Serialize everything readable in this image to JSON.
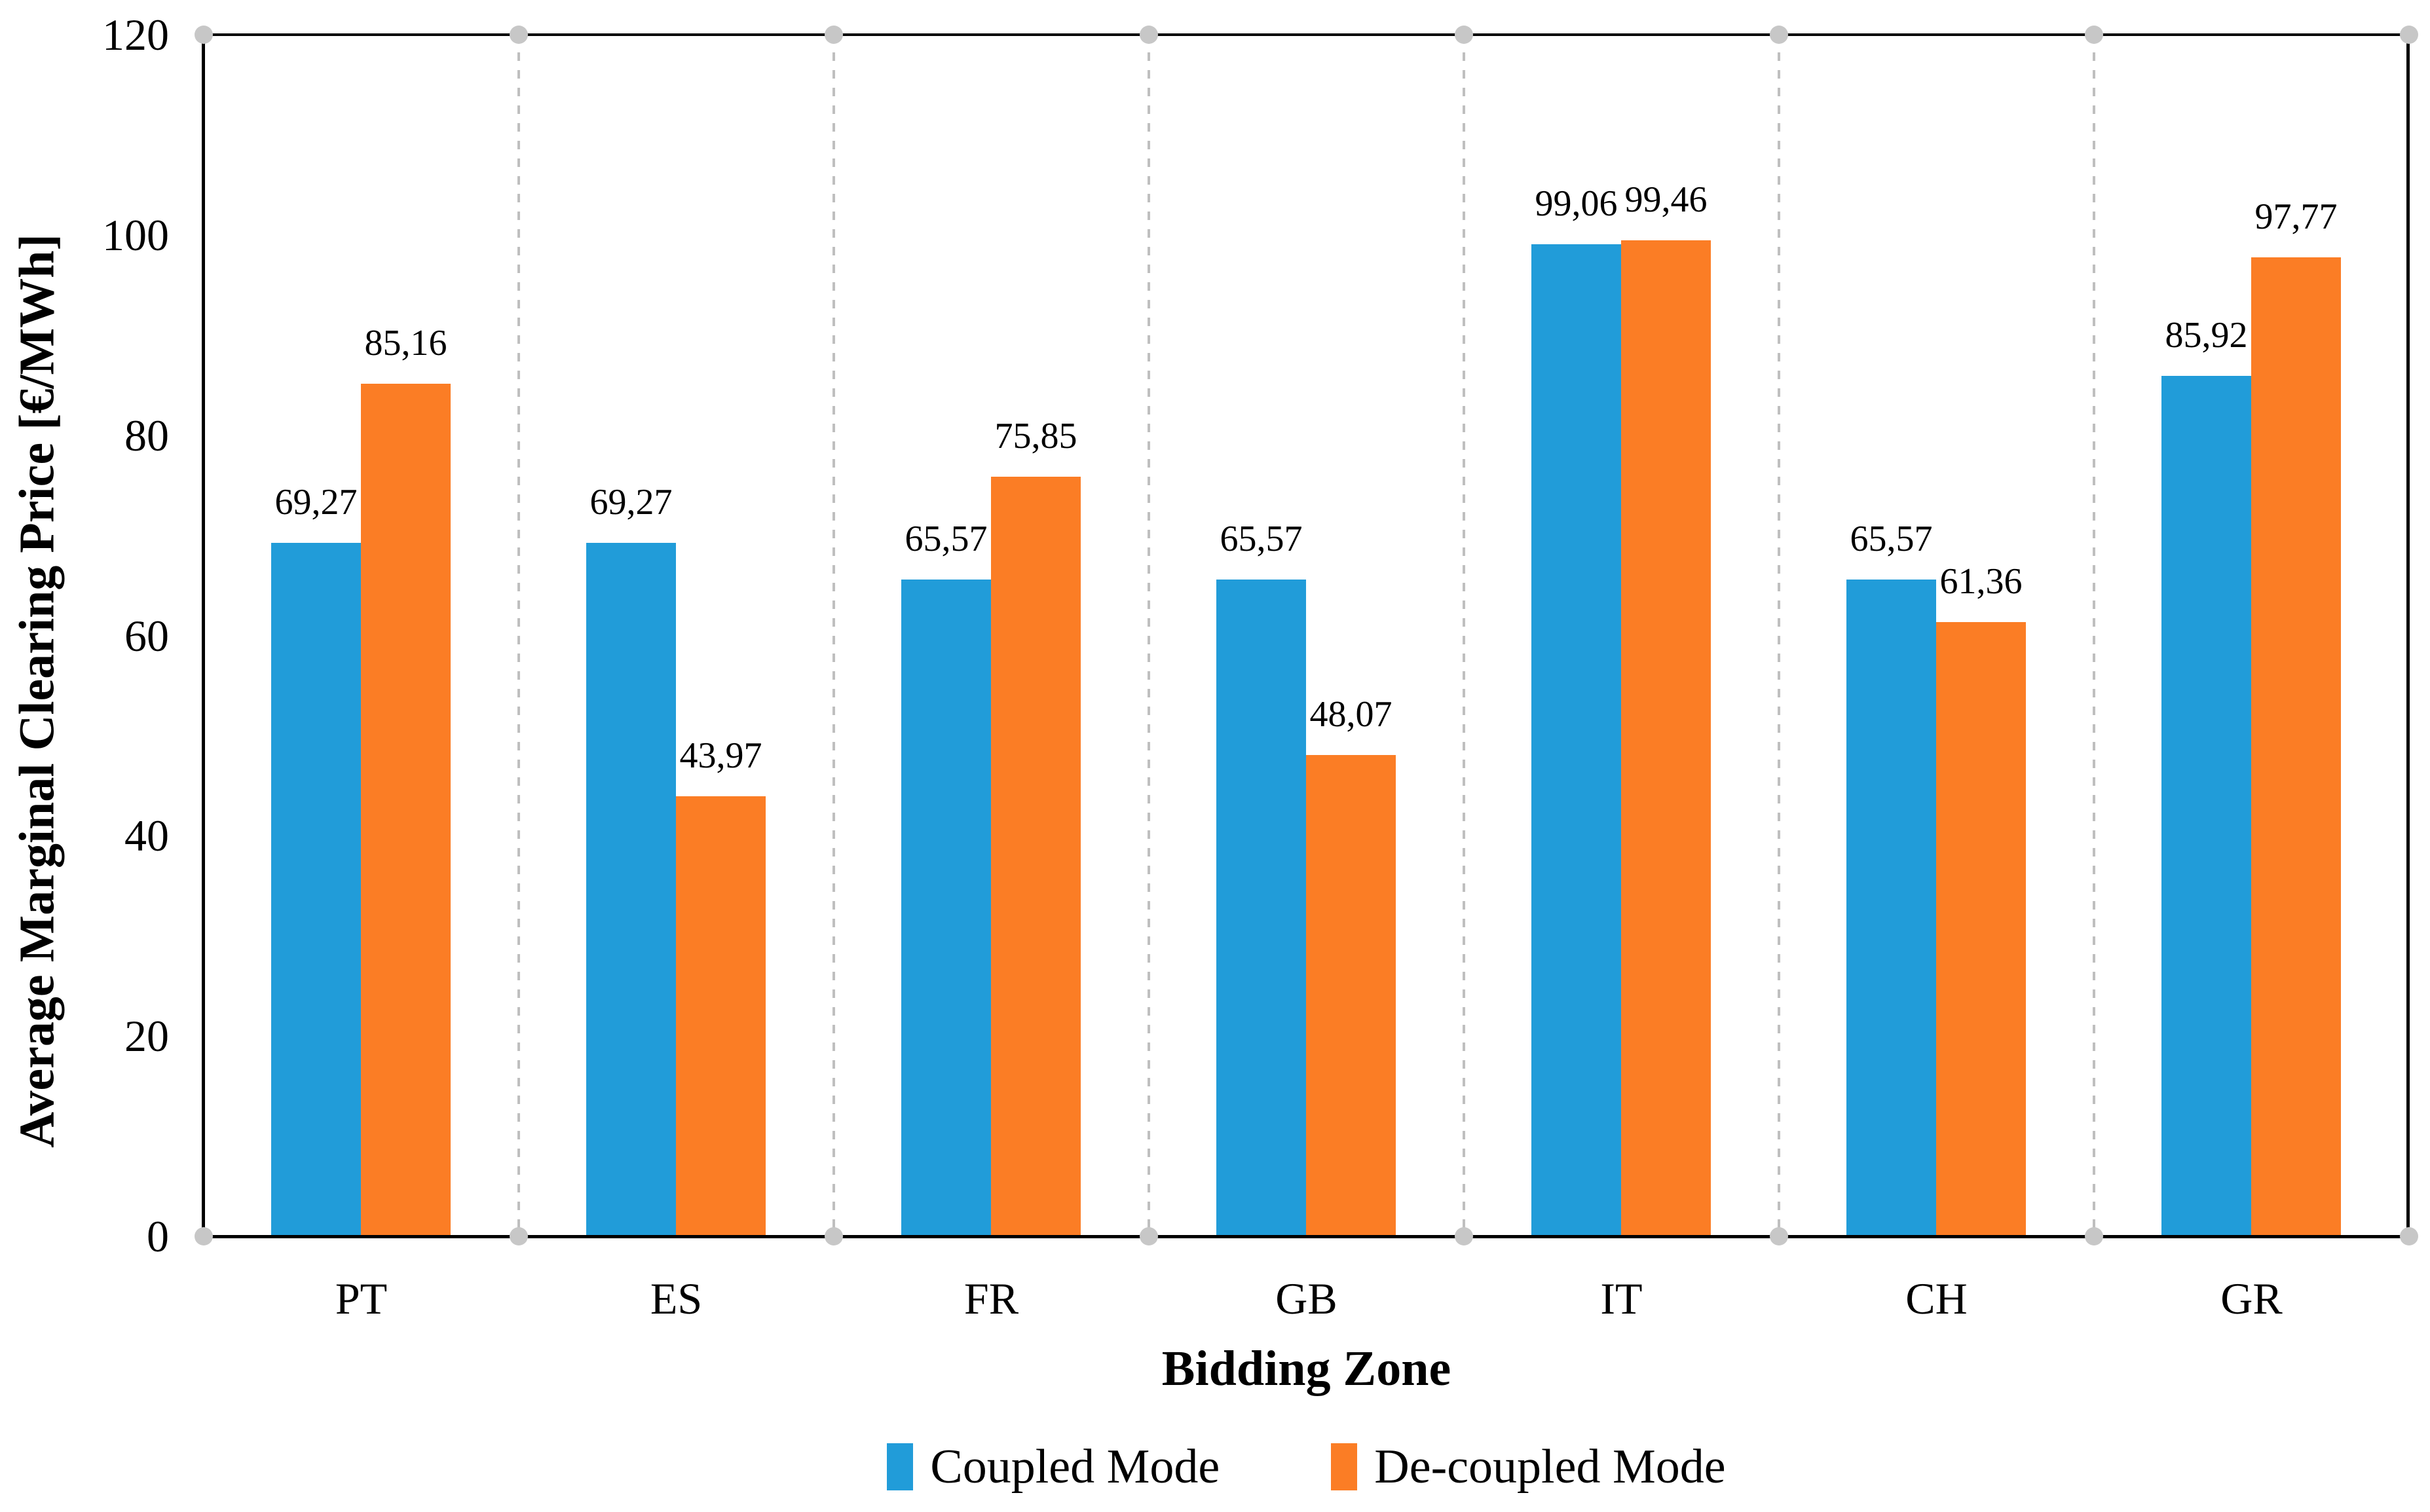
{
  "chart_data": {
    "type": "bar",
    "title": "",
    "xlabel": "Bidding Zone",
    "ylabel": "Average Marginal Clearing Price [€/MWh]",
    "ylim": [
      0,
      120
    ],
    "ytick_step": 20,
    "ytick_labels": [
      "0",
      "20",
      "40",
      "60",
      "80",
      "100",
      "120"
    ],
    "ytick_values": [
      0,
      20,
      40,
      60,
      80,
      100,
      120
    ],
    "grid": "vertical dashed lines at category boundaries with gray dot end markers",
    "legend_position": "bottom-center",
    "decimal_separator": ",",
    "categories": [
      "PT",
      "ES",
      "FR",
      "GB",
      "IT",
      "CH",
      "GR"
    ],
    "series": [
      {
        "name": "Coupled Mode",
        "color": "#219CD9",
        "values": [
          69.27,
          69.27,
          65.57,
          65.57,
          99.06,
          65.57,
          85.92
        ],
        "labels": [
          "69,27",
          "69,27",
          "65,57",
          "65,57",
          "99,06",
          "65,57",
          "85,92"
        ]
      },
      {
        "name": "De-coupled Mode",
        "color": "#FB7D25",
        "values": [
          85.16,
          43.97,
          75.85,
          48.07,
          99.46,
          61.36,
          97.77
        ],
        "labels": [
          "85,16",
          "43,97",
          "75,85",
          "48,07",
          "99,46",
          "61,36",
          "97,77"
        ]
      }
    ],
    "colors": {
      "axis": "#000000",
      "gridline": "#BFBFBF",
      "end_marker_dot": "#C7C7C7",
      "text": "#000000",
      "background": "#FFFFFF"
    }
  }
}
